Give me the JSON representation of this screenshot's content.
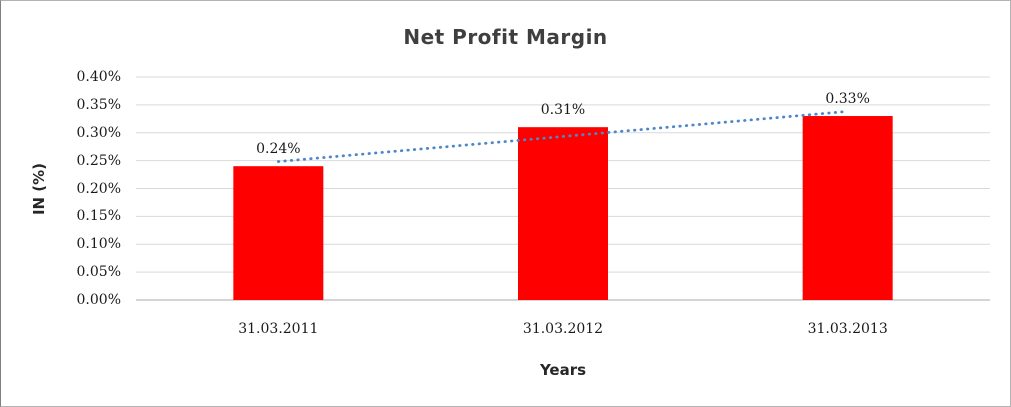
{
  "chart_data": {
    "type": "bar",
    "title": "Net Profit Margin",
    "xlabel": "Years",
    "ylabel": "IN (%)",
    "categories": [
      "31.03.2011",
      "31.03.2012",
      "31.03.2013"
    ],
    "values": [
      0.24,
      0.31,
      0.33
    ],
    "value_labels": [
      "0.24%",
      "0.31%",
      "0.33%"
    ],
    "ytick_labels": [
      "0.40%",
      "0.35%",
      "0.30%",
      "0.25%",
      "0.20%",
      "0.15%",
      "0.10%",
      "0.05%",
      "0.00%"
    ],
    "ylim": [
      0,
      0.4
    ],
    "grid": true,
    "legend": "none",
    "bar_color": "#FF0000",
    "gridline_color": "#D9D9D9",
    "axis_line_color": "#C6C6C6",
    "trendline": {
      "type": "linear",
      "style": "dotted",
      "color": "#4C87C9"
    }
  }
}
